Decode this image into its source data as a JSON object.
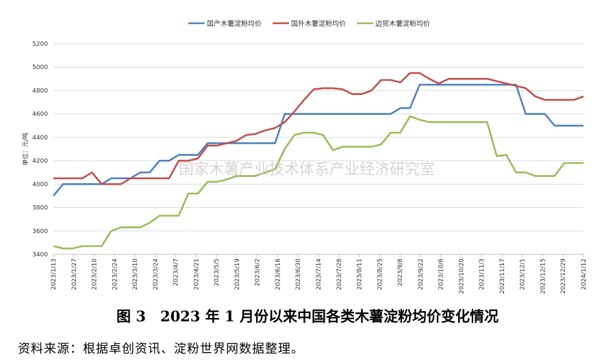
{
  "caption": "图 3　2023 年 1 月份以来中国各类木薯淀粉均价变化情况",
  "source": "资料来源：根据卓创资讯、淀粉世界网数据整理。",
  "watermark": "国家木薯产业技术体系产业经济研究室",
  "chart_data": {
    "type": "line",
    "title": "",
    "ylabel": "单位：元/吨",
    "xlabel": "",
    "ylim": [
      3400,
      5200
    ],
    "yticks": [
      3400,
      3600,
      3800,
      4000,
      4200,
      4400,
      4600,
      4800,
      5000,
      5200
    ],
    "grid": "horizontal",
    "legend_position": "top",
    "xtick_labels": [
      "2023/1/13",
      "2023/1/27",
      "2023/2/10",
      "2023/2/24",
      "2023/3/10",
      "2023/3/24",
      "2023/4/7",
      "2023/4/21",
      "2023/5/5",
      "2023/5/19",
      "2023/6/2",
      "2023/6/16",
      "2023/6/30",
      "2023/7/14",
      "2023/7/28",
      "2023/8/11",
      "2023/8/25",
      "2023/9/8",
      "2023/9/22",
      "2023/10/6",
      "2023/10/20",
      "2023/11/3",
      "2023/11/17",
      "2023/12/1",
      "2023/12/15",
      "2023/12/29",
      "2024/1/12"
    ],
    "series": [
      {
        "name": "国产木薯淀粉均价",
        "color": "#4f81bd",
        "values": [
          3900,
          4000,
          4000,
          4000,
          4000,
          4000,
          4050,
          4050,
          4050,
          4100,
          4100,
          4200,
          4200,
          4250,
          4250,
          4250,
          4350,
          4350,
          4350,
          4350,
          4350,
          4350,
          4350,
          4350,
          4600,
          4600,
          4600,
          4600,
          4600,
          4600,
          4600,
          4600,
          4600,
          4600,
          4600,
          4600,
          4650,
          4650,
          4850,
          4850,
          4850,
          4850,
          4850,
          4850,
          4850,
          4850,
          4850,
          4850,
          4850,
          4600,
          4600,
          4600,
          4500,
          4500,
          4500,
          4500
        ]
      },
      {
        "name": "国外木薯淀粉均价",
        "color": "#c0504d",
        "values": [
          4050,
          4050,
          4050,
          4050,
          4100,
          4000,
          4000,
          4000,
          4050,
          4050,
          4050,
          4050,
          4050,
          4200,
          4200,
          4220,
          4330,
          4330,
          4350,
          4370,
          4420,
          4430,
          4460,
          4480,
          4530,
          4620,
          4720,
          4810,
          4820,
          4820,
          4810,
          4770,
          4770,
          4800,
          4890,
          4890,
          4870,
          4950,
          4950,
          4900,
          4860,
          4900,
          4900,
          4900,
          4900,
          4900,
          4880,
          4860,
          4840,
          4820,
          4750,
          4720,
          4720,
          4720,
          4720,
          4750
        ]
      },
      {
        "name": "边贸木薯淀粉均价",
        "color": "#9bbb59",
        "values": [
          3470,
          3450,
          3450,
          3470,
          3470,
          3470,
          3600,
          3630,
          3630,
          3630,
          3670,
          3730,
          3730,
          3730,
          3920,
          3920,
          4020,
          4020,
          4040,
          4070,
          4070,
          4070,
          4100,
          4130,
          4300,
          4420,
          4440,
          4440,
          4420,
          4290,
          4320,
          4320,
          4320,
          4320,
          4340,
          4440,
          4440,
          4580,
          4550,
          4530,
          4530,
          4530,
          4530,
          4530,
          4530,
          4530,
          4240,
          4250,
          4100,
          4100,
          4070,
          4070,
          4070,
          4180,
          4180,
          4180
        ]
      }
    ]
  }
}
